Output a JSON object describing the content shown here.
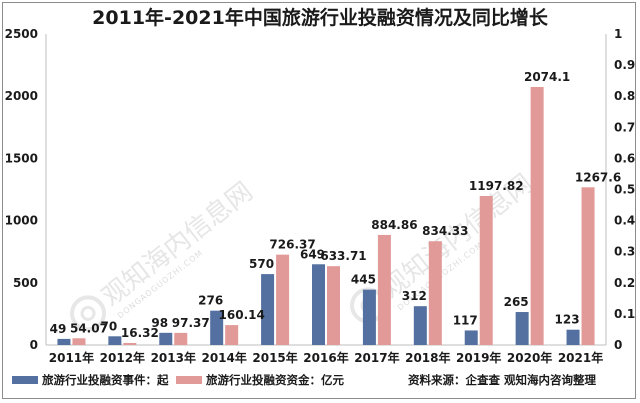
{
  "chart_data": {
    "type": "bar",
    "title": "2011年-2021年中国旅游行业投融资情况及同比增长",
    "categories": [
      "2011年",
      "2012年",
      "2013年",
      "2014年",
      "2015年",
      "2016年",
      "2017年",
      "2018年",
      "2019年",
      "2020年",
      "2021年"
    ],
    "series": [
      {
        "name": "旅游行业投融资事件：起",
        "color": "#5470a0",
        "axis": "left",
        "values": [
          49,
          70,
          98,
          276,
          570,
          649,
          445,
          312,
          117,
          265,
          123
        ],
        "labels": [
          "49",
          "70",
          "98",
          "276",
          "570",
          "649",
          "445",
          "312",
          "117",
          "265",
          "123"
        ]
      },
      {
        "name": "旅游行业投融资资金：亿元",
        "color": "#e29a98",
        "axis": "left",
        "values": [
          54.07,
          16.32,
          97.37,
          160.14,
          726.37,
          633.71,
          884.86,
          834.33,
          1197.82,
          2074.1,
          1267.6
        ],
        "labels": [
          "54.07",
          "16.32",
          "97.37",
          "160.14",
          "726.37",
          "633.71",
          "884.86",
          "834.33",
          "1197.82",
          "2074.1",
          "1267.6"
        ]
      }
    ],
    "ylim": [
      0,
      2500
    ],
    "yticks": [
      "0",
      "500",
      "1000",
      "1500",
      "2000",
      "2500"
    ],
    "y2lim": [
      0,
      1
    ],
    "y2ticks": [
      "0",
      "0.1",
      "0.2",
      "0.3",
      "0.4",
      "0.5",
      "0.6",
      "0.7",
      "0.8",
      "0.9",
      "1"
    ],
    "grid": false,
    "legend_position": "bottom"
  },
  "source_text": "资料来源：企查查 观知海内咨询整理",
  "watermark": {
    "text": "观知海内信息网",
    "domain": "DONGAOGUOZHI.COM"
  }
}
